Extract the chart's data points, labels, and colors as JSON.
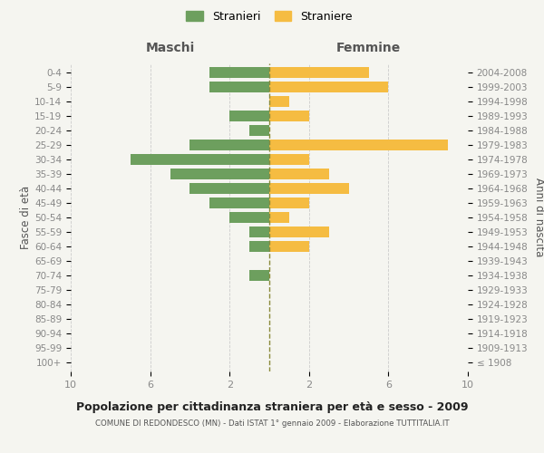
{
  "age_groups": [
    "100+",
    "95-99",
    "90-94",
    "85-89",
    "80-84",
    "75-79",
    "70-74",
    "65-69",
    "60-64",
    "55-59",
    "50-54",
    "45-49",
    "40-44",
    "35-39",
    "30-34",
    "25-29",
    "20-24",
    "15-19",
    "10-14",
    "5-9",
    "0-4"
  ],
  "birth_years": [
    "≤ 1908",
    "1909-1913",
    "1914-1918",
    "1919-1923",
    "1924-1928",
    "1929-1933",
    "1934-1938",
    "1939-1943",
    "1944-1948",
    "1949-1953",
    "1954-1958",
    "1959-1963",
    "1964-1968",
    "1969-1973",
    "1974-1978",
    "1979-1983",
    "1984-1988",
    "1989-1993",
    "1994-1998",
    "1999-2003",
    "2004-2008"
  ],
  "males": [
    0,
    0,
    0,
    0,
    0,
    0,
    1,
    0,
    1,
    1,
    2,
    3,
    4,
    5,
    7,
    4,
    1,
    2,
    0,
    3,
    3
  ],
  "females": [
    0,
    0,
    0,
    0,
    0,
    0,
    0,
    0,
    2,
    3,
    1,
    2,
    4,
    3,
    2,
    9,
    0,
    2,
    1,
    6,
    5
  ],
  "male_color": "#6d9f5e",
  "female_color": "#f5bc42",
  "center_line_color": "#8a8a3a",
  "title": "Popolazione per cittadinanza straniera per età e sesso - 2009",
  "subtitle": "COMUNE DI REDONDESCO (MN) - Dati ISTAT 1° gennaio 2009 - Elaborazione TUTTITALIA.IT",
  "xlabel_left": "Maschi",
  "xlabel_right": "Femmine",
  "ylabel_left": "Fasce di età",
  "ylabel_right": "Anni di nascita",
  "legend_male": "Stranieri",
  "legend_female": "Straniere",
  "xlim": 10,
  "background_color": "#f5f5f0",
  "bar_height": 0.75,
  "tick_label_color": "#888888",
  "title_color": "#222222",
  "subtitle_color": "#555555"
}
